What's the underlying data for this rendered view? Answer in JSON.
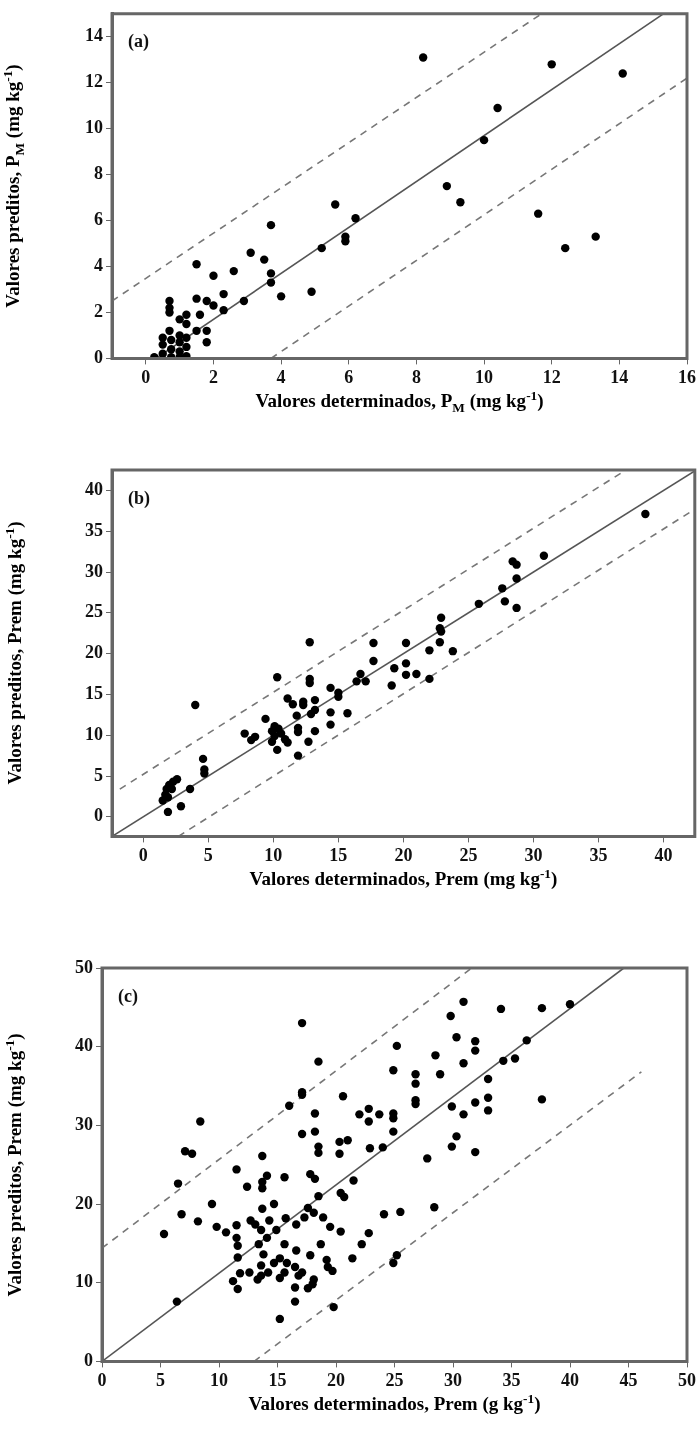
{
  "chart_data": [
    {
      "type": "scatter",
      "xlabel": "Valores determinados, P$_{M}$ (mg kg$^{-1}$)",
      "ylabel": "Valores preditos, P$_{M}$ (mg kg$^{-1}$)",
      "annotations": [
        "(a)"
      ],
      "xlim": [
        -1,
        16
      ],
      "ylim": [
        0,
        15
      ],
      "xticks": [
        0,
        2,
        4,
        6,
        8,
        10,
        12,
        14,
        16
      ],
      "yticks": [
        0,
        2,
        4,
        6,
        8,
        10,
        12,
        14
      ],
      "grid": false,
      "legend": false,
      "series": [
        {
          "type": "scatter",
          "color": "#000000",
          "marker": "circle",
          "x": [
            8.2,
            12.0,
            14.1,
            10.4,
            10.0,
            8.9,
            9.3,
            11.6,
            13.3,
            12.4,
            5.6,
            6.2,
            5.9,
            5.9,
            5.2,
            4.9,
            3.7,
            3.1,
            3.5,
            3.7,
            3.7,
            4.0,
            2.9,
            2.6,
            2.0,
            1.5,
            2.3,
            2.3,
            2.0,
            1.8,
            1.5,
            1.6,
            1.5,
            1.8,
            1.8,
            0.7,
            0.7,
            0.7,
            1.0,
            1.2,
            1.2,
            0.5,
            0.5,
            0.5,
            0.7,
            1.0,
            1.0,
            1.0,
            1.2,
            1.2,
            1.2,
            0.75,
            0.75,
            0.75,
            0.25,
            1.0
          ],
          "values": [
            13.1,
            12.8,
            12.4,
            10.9,
            9.5,
            7.5,
            6.8,
            6.3,
            5.3,
            4.8,
            6.7,
            6.1,
            5.3,
            5.1,
            4.8,
            2.9,
            5.8,
            4.6,
            4.3,
            3.7,
            3.3,
            2.7,
            2.5,
            3.8,
            3.6,
            4.1,
            2.8,
            2.1,
            2.3,
            2.5,
            2.6,
            1.9,
            1.2,
            1.2,
            0.7,
            2.5,
            2.2,
            2.0,
            1.7,
            1.9,
            1.5,
            0.9,
            0.6,
            0.2,
            1.2,
            1.0,
            0.7,
            0.3,
            0.9,
            0.5,
            0.1,
            0.8,
            0.4,
            0.05,
            0.05,
            0.05
          ]
        },
        {
          "type": "line",
          "color": "#555555",
          "marker": "none",
          "line_style": "solid",
          "x": [
            0.3,
            15.3
          ],
          "values": [
            0,
            15
          ]
        },
        {
          "type": "line",
          "color": "#777777",
          "marker": "none",
          "line_style": "dashed",
          "x": [
            -1,
            11.7
          ],
          "values": [
            2.5,
            15
          ]
        },
        {
          "type": "line",
          "color": "#777777",
          "marker": "none",
          "line_style": "dashed",
          "x": [
            3.7,
            16
          ],
          "values": [
            0,
            12.2
          ]
        }
      ]
    },
    {
      "type": "scatter",
      "xlabel": "Valores determinados, Prem (mg kg$^{-1}$)",
      "ylabel": "Valores preditos, Prem (mg kg$^{-1}$)",
      "annotations": [
        "(b)"
      ],
      "xlim": [
        -2.4,
        42.4
      ],
      "ylim": [
        -2.4,
        42.5
      ],
      "xticks": [
        0,
        5,
        10,
        15,
        20,
        25,
        30,
        35,
        40
      ],
      "yticks": [
        0,
        5,
        10,
        15,
        20,
        25,
        30,
        35,
        40
      ],
      "grid": false,
      "legend": false,
      "series": [
        {
          "type": "scatter",
          "color": "#000000",
          "marker": "circle",
          "x": [
            38.6,
            30.8,
            28.4,
            28.7,
            28.7,
            27.6,
            27.8,
            28.7,
            25.8,
            22.9,
            22.8,
            22.9,
            22.8,
            22.0,
            23.8,
            20.2,
            20.2,
            19.3,
            20.2,
            21.0,
            22.0,
            19.1,
            17.7,
            17.7,
            16.7,
            16.4,
            17.1,
            12.8,
            12.8,
            12.8,
            10.3,
            14.4,
            15.0,
            15.0,
            13.2,
            12.3,
            12.3,
            11.1,
            11.5,
            11.8,
            12.9,
            13.2,
            14.4,
            15.7,
            14.4,
            13.2,
            11.9,
            11.9,
            12.7,
            11.9,
            9.4,
            7.8,
            8.6,
            8.3,
            10.1,
            10.4,
            9.9,
            10.6,
            10.1,
            10.9,
            11.1,
            9.9,
            10.3,
            4.0,
            4.6,
            4.7,
            4.7,
            3.6,
            2.9,
            1.9,
            2.6,
            2.3,
            2.0,
            1.8,
            2.2,
            1.7,
            1.5,
            1.9
          ],
          "values": [
            37.1,
            32.0,
            31.3,
            30.9,
            29.2,
            28.0,
            26.4,
            25.6,
            26.1,
            24.4,
            23.1,
            22.7,
            21.4,
            20.4,
            20.3,
            21.3,
            18.8,
            18.2,
            17.4,
            17.5,
            16.9,
            16.1,
            21.3,
            19.1,
            17.5,
            16.6,
            16.6,
            21.4,
            16.9,
            16.4,
            17.1,
            15.8,
            15.2,
            14.7,
            14.3,
            14.1,
            13.7,
            14.5,
            13.8,
            12.4,
            12.6,
            13.1,
            12.8,
            12.7,
            11.3,
            10.5,
            10.9,
            10.4,
            9.2,
            7.5,
            12.0,
            10.2,
            9.8,
            9.4,
            11.1,
            10.8,
            10.5,
            10.2,
            9.9,
            9.5,
            9.1,
            9.2,
            8.2,
            13.7,
            7.1,
            5.8,
            5.3,
            3.4,
            1.3,
            0.6,
            4.6,
            4.3,
            3.9,
            3.4,
            3.4,
            2.7,
            2.0,
            2.4
          ]
        },
        {
          "type": "line",
          "color": "#555555",
          "marker": "none",
          "line_style": "solid",
          "x": [
            -2.4,
            42.4
          ],
          "values": [
            -2.4,
            42.4
          ]
        },
        {
          "type": "line",
          "color": "#777777",
          "marker": "none",
          "line_style": "dashed",
          "x": [
            -1.8,
            37.1
          ],
          "values": [
            3.4,
            42.5
          ]
        },
        {
          "type": "line",
          "color": "#777777",
          "marker": "none",
          "line_style": "dashed",
          "x": [
            2.7,
            42.1
          ],
          "values": [
            -2.4,
            37.4
          ]
        }
      ]
    },
    {
      "type": "scatter",
      "xlabel": "Valores determinados, Prem (g kg$^{-1}$)",
      "ylabel": "Valores preditos, Prem (mg kg$^{-1}$)",
      "annotations": [
        "(c)"
      ],
      "xlim": [
        0,
        50
      ],
      "ylim": [
        0,
        50
      ],
      "xticks": [
        0,
        5,
        10,
        15,
        20,
        25,
        30,
        35,
        40,
        45,
        50
      ],
      "yticks": [
        0,
        10,
        20,
        30,
        40,
        50
      ],
      "grid": false,
      "legend": false,
      "series": [
        {
          "type": "scatter",
          "color": "#000000",
          "marker": "circle",
          "x": [
            17.1,
            30.9,
            29.8,
            34.1,
            37.6,
            40.0,
            30.3,
            31.9,
            31.9,
            36.3,
            25.2,
            18.5,
            28.5,
            34.3,
            35.3,
            30.9,
            24.9,
            26.8,
            28.9,
            26.8,
            33.0,
            17.1,
            17.1,
            20.6,
            33.0,
            37.6,
            16.0,
            26.8,
            26.8,
            31.9,
            22.8,
            22.0,
            23.7,
            22.8,
            24.9,
            24.9,
            29.9,
            30.9,
            33.0,
            18.2,
            8.4,
            18.2,
            17.1,
            24.9,
            30.3,
            20.3,
            21.0,
            18.5,
            18.5,
            20.3,
            29.9,
            31.9,
            22.9,
            24.0,
            7.1,
            7.7,
            13.7,
            27.8,
            11.5,
            17.8,
            18.2,
            14.1,
            13.7,
            13.7,
            15.6,
            21.5,
            12.4,
            6.5,
            20.4,
            20.7,
            18.5,
            9.4,
            14.7,
            13.7,
            6.8,
            28.4,
            25.5,
            24.1,
            15.7,
            17.3,
            17.6,
            18.1,
            18.9,
            8.2,
            12.7,
            13.1,
            14.3,
            16.6,
            13.6,
            14.9,
            9.8,
            11.5,
            10.6,
            11.5,
            20.4,
            19.5,
            5.3,
            22.8,
            14.1,
            13.4,
            15.6,
            18.7,
            22.2,
            11.6,
            16.6,
            13.8,
            15.2,
            17.8,
            19.2,
            21.4,
            24.9,
            25.2,
            11.6,
            14.7,
            15.8,
            13.6,
            16.5,
            19.3,
            19.7,
            12.6,
            11.8,
            14.2,
            15.6,
            17.1,
            16.8,
            13.6,
            15.2,
            13.3,
            11.2,
            18.1,
            18.0,
            11.6,
            16.5,
            17.6,
            16.5,
            6.4,
            19.8,
            15.2
          ],
          "values": [
            43.0,
            45.7,
            43.9,
            44.8,
            44.9,
            45.4,
            41.2,
            40.7,
            39.5,
            40.8,
            40.1,
            38.1,
            38.9,
            38.2,
            38.5,
            37.9,
            37.0,
            36.5,
            36.5,
            35.3,
            35.9,
            34.2,
            33.9,
            33.7,
            33.5,
            33.3,
            32.5,
            33.2,
            32.7,
            32.9,
            32.1,
            31.4,
            31.4,
            30.5,
            31.5,
            30.9,
            32.4,
            31.4,
            31.9,
            31.5,
            30.5,
            29.2,
            28.9,
            29.2,
            28.6,
            27.9,
            28.1,
            27.3,
            26.5,
            26.4,
            27.3,
            26.6,
            27.1,
            27.2,
            26.7,
            26.4,
            26.1,
            25.8,
            24.4,
            23.8,
            23.2,
            23.6,
            22.8,
            22.0,
            23.4,
            23.0,
            22.2,
            22.6,
            21.4,
            20.9,
            21.0,
            20.0,
            20.0,
            19.4,
            18.7,
            19.6,
            19.0,
            18.7,
            18.2,
            18.3,
            19.5,
            18.9,
            18.3,
            17.8,
            17.9,
            17.4,
            17.9,
            17.4,
            16.7,
            16.7,
            17.1,
            17.3,
            16.4,
            15.7,
            16.5,
            17.1,
            16.2,
            16.3,
            15.7,
            14.9,
            14.9,
            14.9,
            14.9,
            14.7,
            14.1,
            13.6,
            13.1,
            13.5,
            12.9,
            13.1,
            12.5,
            13.5,
            13.2,
            12.5,
            12.5,
            12.2,
            12.0,
            12.0,
            11.5,
            11.3,
            11.2,
            11.3,
            11.3,
            11.3,
            10.9,
            10.9,
            10.6,
            10.4,
            10.2,
            10.4,
            9.8,
            9.2,
            9.4,
            9.3,
            7.6,
            7.6,
            6.9,
            5.4
          ]
        },
        {
          "type": "line",
          "color": "#555555",
          "marker": "none",
          "line_style": "solid",
          "x": [
            0,
            44.6
          ],
          "values": [
            0,
            50
          ]
        },
        {
          "type": "line",
          "color": "#777777",
          "marker": "none",
          "line_style": "dashed",
          "x": [
            0,
            31.6
          ],
          "values": [
            14.4,
            50
          ]
        },
        {
          "type": "line",
          "color": "#777777",
          "marker": "none",
          "line_style": "dashed",
          "x": [
            13.0,
            46.1
          ],
          "values": [
            0,
            36.8
          ]
        }
      ]
    }
  ]
}
